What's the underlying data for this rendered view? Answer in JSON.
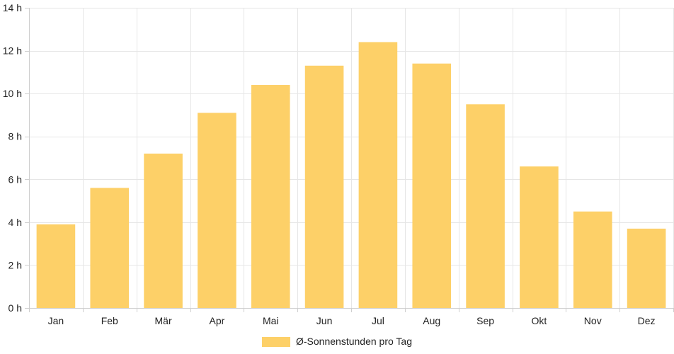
{
  "chart_data": {
    "type": "bar",
    "categories": [
      "Jan",
      "Feb",
      "Mär",
      "Apr",
      "Mai",
      "Jun",
      "Jul",
      "Aug",
      "Sep",
      "Okt",
      "Nov",
      "Dez"
    ],
    "series": [
      {
        "name": "Ø-Sonnenstunden pro Tag",
        "values": [
          3.9,
          5.6,
          7.2,
          9.1,
          10.4,
          11.3,
          12.4,
          11.4,
          9.5,
          6.6,
          4.5,
          3.7
        ],
        "color": "#fdd068"
      }
    ],
    "ylim": [
      0,
      14
    ],
    "yticks": [
      0,
      2,
      4,
      6,
      8,
      10,
      12,
      14
    ],
    "ytick_labels": [
      "0 h",
      "2 h",
      "4 h",
      "6 h",
      "8 h",
      "10 h",
      "12 h",
      "14 h"
    ],
    "grid": true,
    "legend_position": "bottom-center",
    "title": "",
    "xlabel": "",
    "ylabel": ""
  }
}
